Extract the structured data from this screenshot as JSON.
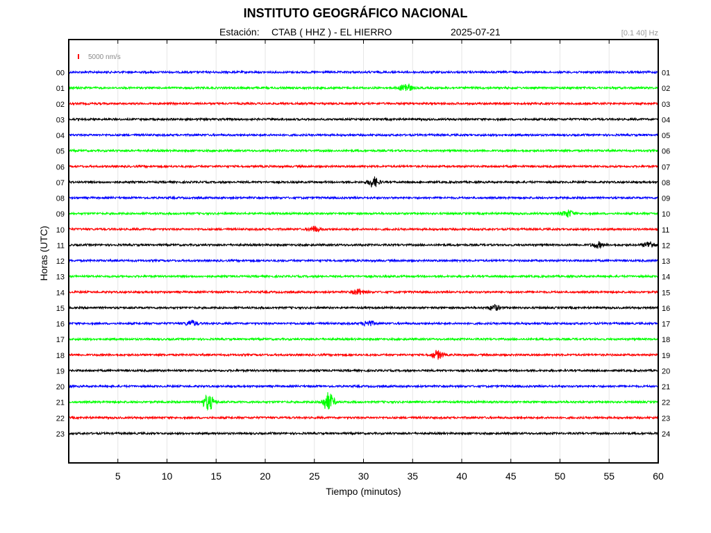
{
  "header": {
    "title": "INSTITUTO GEOGRÁFICO NACIONAL",
    "station_prefix": "Estación:",
    "station": "CTAB ( HHZ ) - EL HIERRO",
    "date": "2025-07-21",
    "filter": "[0.1 40] Hz"
  },
  "chart_data": {
    "type": "line",
    "title": "INSTITUTO GEOGRÁFICO NACIONAL",
    "xlabel": "Tiempo (minutos)",
    "ylabel": "Horas (UTC)",
    "xlim": [
      0,
      60
    ],
    "x_ticks": [
      5,
      10,
      15,
      20,
      25,
      30,
      35,
      40,
      45,
      50,
      55,
      60
    ],
    "grid": true,
    "scale_label": "5000 nm/s",
    "scale_color": "#ff0000",
    "series_colors": [
      "#0000ff",
      "#00ff00",
      "#ff0000",
      "#000000"
    ],
    "rows": [
      {
        "left": "00",
        "right": "01",
        "events": []
      },
      {
        "left": "01",
        "right": "02",
        "events": [
          {
            "t": 34.3,
            "amp": 7
          }
        ]
      },
      {
        "left": "02",
        "right": "03",
        "events": []
      },
      {
        "left": "03",
        "right": "04",
        "events": []
      },
      {
        "left": "04",
        "right": "05",
        "events": []
      },
      {
        "left": "05",
        "right": "06",
        "events": []
      },
      {
        "left": "06",
        "right": "07",
        "events": []
      },
      {
        "left": "07",
        "right": "08",
        "events": [
          {
            "t": 31.0,
            "amp": 7
          }
        ]
      },
      {
        "left": "08",
        "right": "09",
        "events": []
      },
      {
        "left": "09",
        "right": "10",
        "events": [
          {
            "t": 50.8,
            "amp": 5
          }
        ]
      },
      {
        "left": "10",
        "right": "11",
        "events": [
          {
            "t": 25.0,
            "amp": 4
          }
        ]
      },
      {
        "left": "11",
        "right": "12",
        "events": [
          {
            "t": 53.8,
            "amp": 4
          },
          {
            "t": 59.1,
            "amp": 5
          }
        ]
      },
      {
        "left": "12",
        "right": "13",
        "events": []
      },
      {
        "left": "13",
        "right": "14",
        "events": []
      },
      {
        "left": "14",
        "right": "15",
        "events": [
          {
            "t": 29.5,
            "amp": 4
          }
        ]
      },
      {
        "left": "15",
        "right": "16",
        "events": [
          {
            "t": 43.3,
            "amp": 4
          }
        ]
      },
      {
        "left": "16",
        "right": "17",
        "events": [
          {
            "t": 12.5,
            "amp": 4
          },
          {
            "t": 30.5,
            "amp": 4
          }
        ]
      },
      {
        "left": "17",
        "right": "18",
        "events": []
      },
      {
        "left": "18",
        "right": "19",
        "events": [
          {
            "t": 37.5,
            "amp": 6
          }
        ]
      },
      {
        "left": "19",
        "right": "20",
        "events": []
      },
      {
        "left": "20",
        "right": "21",
        "events": []
      },
      {
        "left": "21",
        "right": "22",
        "events": [
          {
            "t": 14.2,
            "amp": 11
          },
          {
            "t": 26.4,
            "amp": 13
          }
        ]
      },
      {
        "left": "22",
        "right": "23",
        "events": []
      },
      {
        "left": "23",
        "right": "24",
        "events": []
      }
    ]
  }
}
